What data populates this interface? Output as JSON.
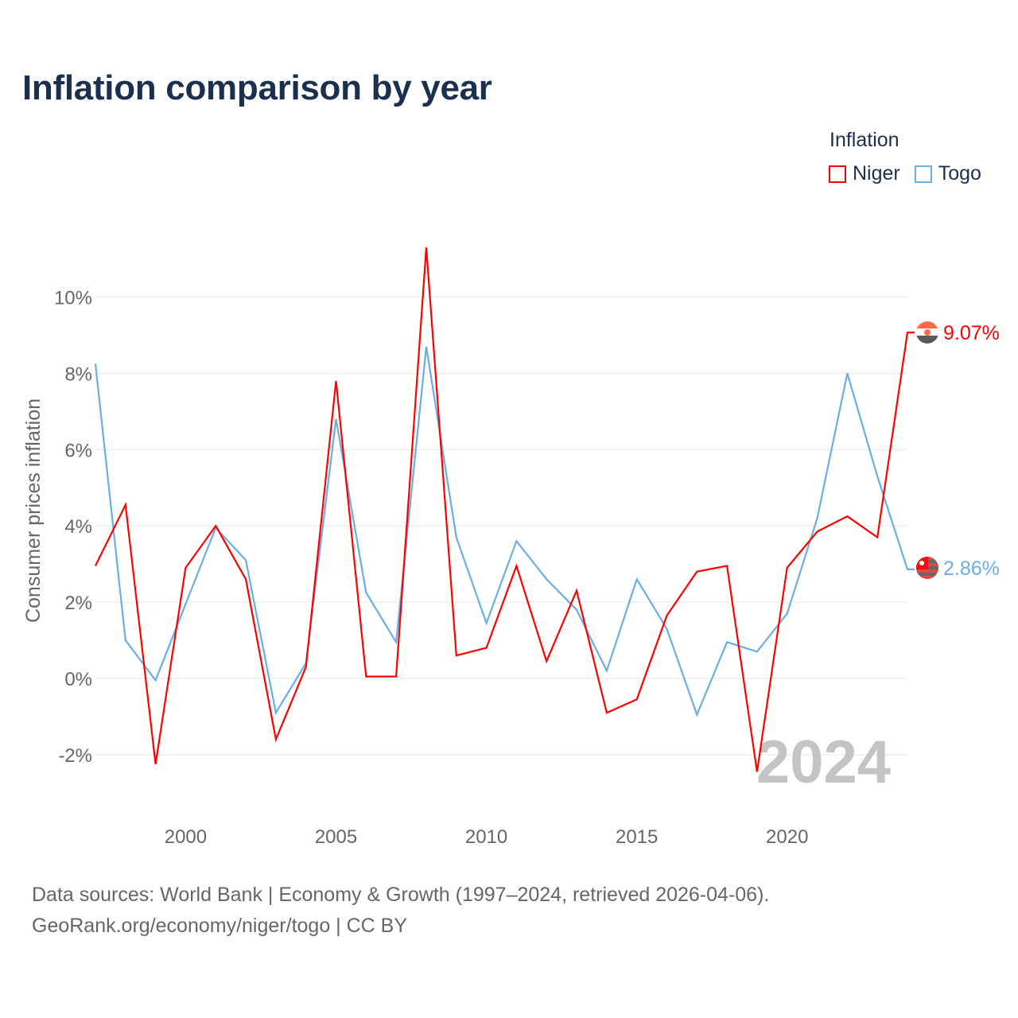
{
  "title": "Inflation comparison by year",
  "legend": {
    "title": "Inflation",
    "items": [
      {
        "label": "Niger",
        "color": "#ff0000"
      },
      {
        "label": "Togo",
        "color": "#6aaee8"
      }
    ]
  },
  "watermark_year": "2024",
  "end_labels": {
    "niger": "9.07%",
    "togo": "2.86%"
  },
  "sources": {
    "line1": "Data sources: World Bank | Economy & Growth (1997–2024, retrieved 2026-04-06).",
    "line2": "GeoRank.org/economy/niger/togo | CC BY"
  },
  "chart_data": {
    "type": "line",
    "title": "Inflation comparison by year",
    "xlabel": "",
    "ylabel": "Consumer prices inflation",
    "x": [
      1997,
      1998,
      1999,
      2000,
      2001,
      2002,
      2003,
      2004,
      2005,
      2006,
      2007,
      2008,
      2009,
      2010,
      2011,
      2012,
      2013,
      2014,
      2015,
      2016,
      2017,
      2018,
      2019,
      2020,
      2021,
      2022,
      2023,
      2024
    ],
    "xlim": [
      1997,
      2024
    ],
    "ylim": [
      -3,
      11.5
    ],
    "xticks": [
      {
        "value": 2000,
        "label": "2000"
      },
      {
        "value": 2005,
        "label": "2005"
      },
      {
        "value": 2010,
        "label": "2010"
      },
      {
        "value": 2015,
        "label": "2015"
      },
      {
        "value": 2020,
        "label": "2020"
      }
    ],
    "yticks": [
      {
        "value": -2,
        "label": "-2%"
      },
      {
        "value": 0,
        "label": "0%"
      },
      {
        "value": 2,
        "label": "2%"
      },
      {
        "value": 4,
        "label": "4%"
      },
      {
        "value": 6,
        "label": "6%"
      },
      {
        "value": 8,
        "label": "8%"
      },
      {
        "value": 10,
        "label": "10%"
      }
    ],
    "grid": true,
    "legend_position": "top-right",
    "series": [
      {
        "name": "Niger",
        "color": "#ff0000",
        "values": [
          2.95,
          4.55,
          -2.25,
          2.9,
          4.0,
          2.6,
          -1.6,
          0.3,
          7.8,
          0.05,
          0.05,
          11.3,
          0.6,
          0.8,
          2.95,
          0.45,
          2.3,
          -0.9,
          -0.55,
          1.65,
          2.8,
          2.95,
          -2.45,
          2.9,
          3.85,
          4.25,
          3.7,
          9.07
        ]
      },
      {
        "name": "Togo",
        "color": "#6aaee8",
        "values": [
          8.25,
          1.0,
          -0.05,
          1.95,
          3.95,
          3.1,
          -0.9,
          0.4,
          6.8,
          2.25,
          0.95,
          8.7,
          3.7,
          1.45,
          3.6,
          2.6,
          1.8,
          0.2,
          2.6,
          1.3,
          -0.95,
          0.95,
          0.7,
          1.7,
          4.2,
          8.0,
          5.3,
          2.86
        ]
      }
    ]
  }
}
